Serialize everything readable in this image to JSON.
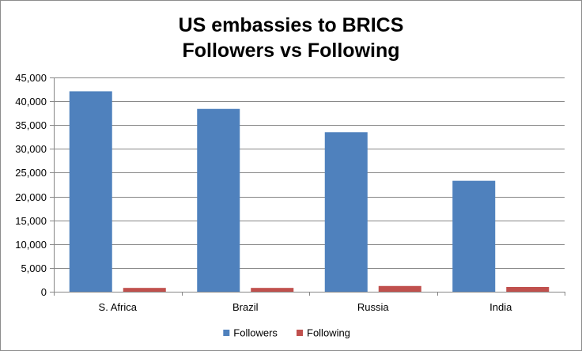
{
  "chart_data": {
    "type": "bar",
    "title_lines": [
      "US embassies to BRICS",
      "Followers vs Following"
    ],
    "categories": [
      "S. Africa",
      "Brazil",
      "Russia",
      "India"
    ],
    "series": [
      {
        "name": "Followers",
        "color": "#4f81bd",
        "values": [
          42100,
          38400,
          33500,
          23300
        ]
      },
      {
        "name": "Following",
        "color": "#c0504d",
        "values": [
          800,
          800,
          1200,
          1000
        ]
      }
    ],
    "ylim": [
      0,
      45000
    ],
    "yticks": [
      0,
      5000,
      10000,
      15000,
      20000,
      25000,
      30000,
      35000,
      40000,
      45000
    ],
    "ytick_labels": [
      "0",
      "5,000",
      "10,000",
      "15,000",
      "20,000",
      "25,000",
      "30,000",
      "35,000",
      "40,000",
      "45,000"
    ],
    "grid": true,
    "legend_position": "bottom"
  }
}
